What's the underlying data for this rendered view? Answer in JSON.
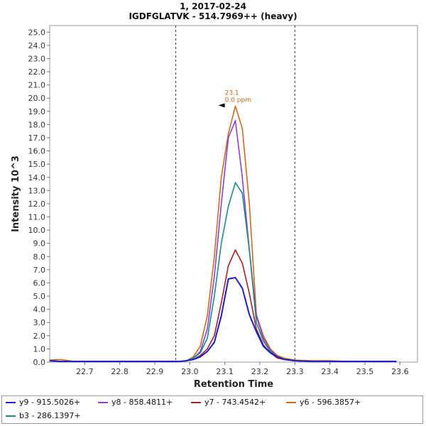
{
  "title_line1": "1, 2017-02-24",
  "title_line2": "IGDFGLATVK - 514.7969++ (heavy)",
  "chart_data": {
    "type": "line",
    "xlabel": "Retention Time",
    "ylabel": "Intensity 10^3",
    "xlim": [
      22.6,
      23.65
    ],
    "ylim": [
      0,
      25.5
    ],
    "xticks": [
      22.7,
      22.8,
      22.9,
      23.0,
      23.1,
      23.2,
      23.3,
      23.4,
      23.5,
      23.6
    ],
    "yticks": [
      0.0,
      1.0,
      2.0,
      3.0,
      4.0,
      5.0,
      6.0,
      7.0,
      8.0,
      9.0,
      10.0,
      11.0,
      12.0,
      13.0,
      14.0,
      15.0,
      16.0,
      17.0,
      18.0,
      19.0,
      20.0,
      21.0,
      22.0,
      23.0,
      24.0,
      25.0
    ],
    "vlines": [
      22.96,
      23.3
    ],
    "annotation": {
      "x": 23.11,
      "y": 19.4,
      "line1": "23.1",
      "line2": "0.0 ppm",
      "color": "#c8641e"
    },
    "x": [
      22.6,
      22.63,
      22.67,
      22.7,
      22.75,
      22.8,
      22.85,
      22.9,
      22.95,
      22.97,
      22.99,
      23.01,
      23.03,
      23.05,
      23.07,
      23.09,
      23.11,
      23.13,
      23.15,
      23.17,
      23.19,
      23.21,
      23.23,
      23.25,
      23.27,
      23.3,
      23.35,
      23.4,
      23.45,
      23.5,
      23.55,
      23.59
    ],
    "series": [
      {
        "name": "y9 - 915.5026+",
        "color": "#1c1ccc",
        "values": [
          0.1,
          0.05,
          0.05,
          0.05,
          0.05,
          0.05,
          0.05,
          0.05,
          0.05,
          0.05,
          0.1,
          0.2,
          0.4,
          0.8,
          1.5,
          3.5,
          6.3,
          6.4,
          5.6,
          3.6,
          2.3,
          1.2,
          0.7,
          0.4,
          0.2,
          0.1,
          0.05,
          0.05,
          0.05,
          0.05,
          0.05,
          0.05
        ]
      },
      {
        "name": "y8 - 858.4811+",
        "color": "#8a3fd6",
        "values": [
          0.1,
          0.05,
          0.05,
          0.05,
          0.05,
          0.05,
          0.05,
          0.05,
          0.05,
          0.05,
          0.1,
          0.3,
          0.8,
          2.5,
          6.5,
          12.0,
          17.0,
          18.3,
          14.0,
          8.5,
          3.5,
          1.8,
          0.9,
          0.4,
          0.2,
          0.1,
          0.05,
          0.05,
          0.05,
          0.05,
          0.05,
          0.05
        ]
      },
      {
        "name": "y7 - 743.4542+",
        "color": "#a32222",
        "values": [
          0.1,
          0.05,
          0.05,
          0.05,
          0.05,
          0.05,
          0.05,
          0.05,
          0.05,
          0.05,
          0.1,
          0.2,
          0.5,
          1.0,
          2.0,
          4.5,
          7.3,
          8.5,
          7.5,
          5.2,
          2.5,
          1.3,
          0.7,
          0.3,
          0.2,
          0.1,
          0.05,
          0.05,
          0.05,
          0.05,
          0.05,
          0.05
        ]
      },
      {
        "name": "y6 - 596.3857+",
        "color": "#d06a1e",
        "values": [
          0.15,
          0.2,
          0.05,
          0.05,
          0.05,
          0.05,
          0.05,
          0.05,
          0.05,
          0.05,
          0.1,
          0.4,
          1.2,
          3.5,
          8.0,
          14.0,
          17.3,
          19.4,
          17.7,
          12.0,
          3.6,
          2.0,
          1.0,
          0.5,
          0.3,
          0.15,
          0.1,
          0.1,
          0.05,
          0.05,
          0.05,
          0.05
        ]
      },
      {
        "name": "b3 - 286.1397+",
        "color": "#1a8a8a",
        "values": [
          0.1,
          0.05,
          0.05,
          0.05,
          0.05,
          0.05,
          0.05,
          0.05,
          0.05,
          0.05,
          0.1,
          0.3,
          0.7,
          1.8,
          5.0,
          9.0,
          11.8,
          13.6,
          12.8,
          8.5,
          3.0,
          1.6,
          0.8,
          0.4,
          0.2,
          0.1,
          0.05,
          0.05,
          0.05,
          0.05,
          0.05,
          0.05
        ]
      }
    ]
  }
}
